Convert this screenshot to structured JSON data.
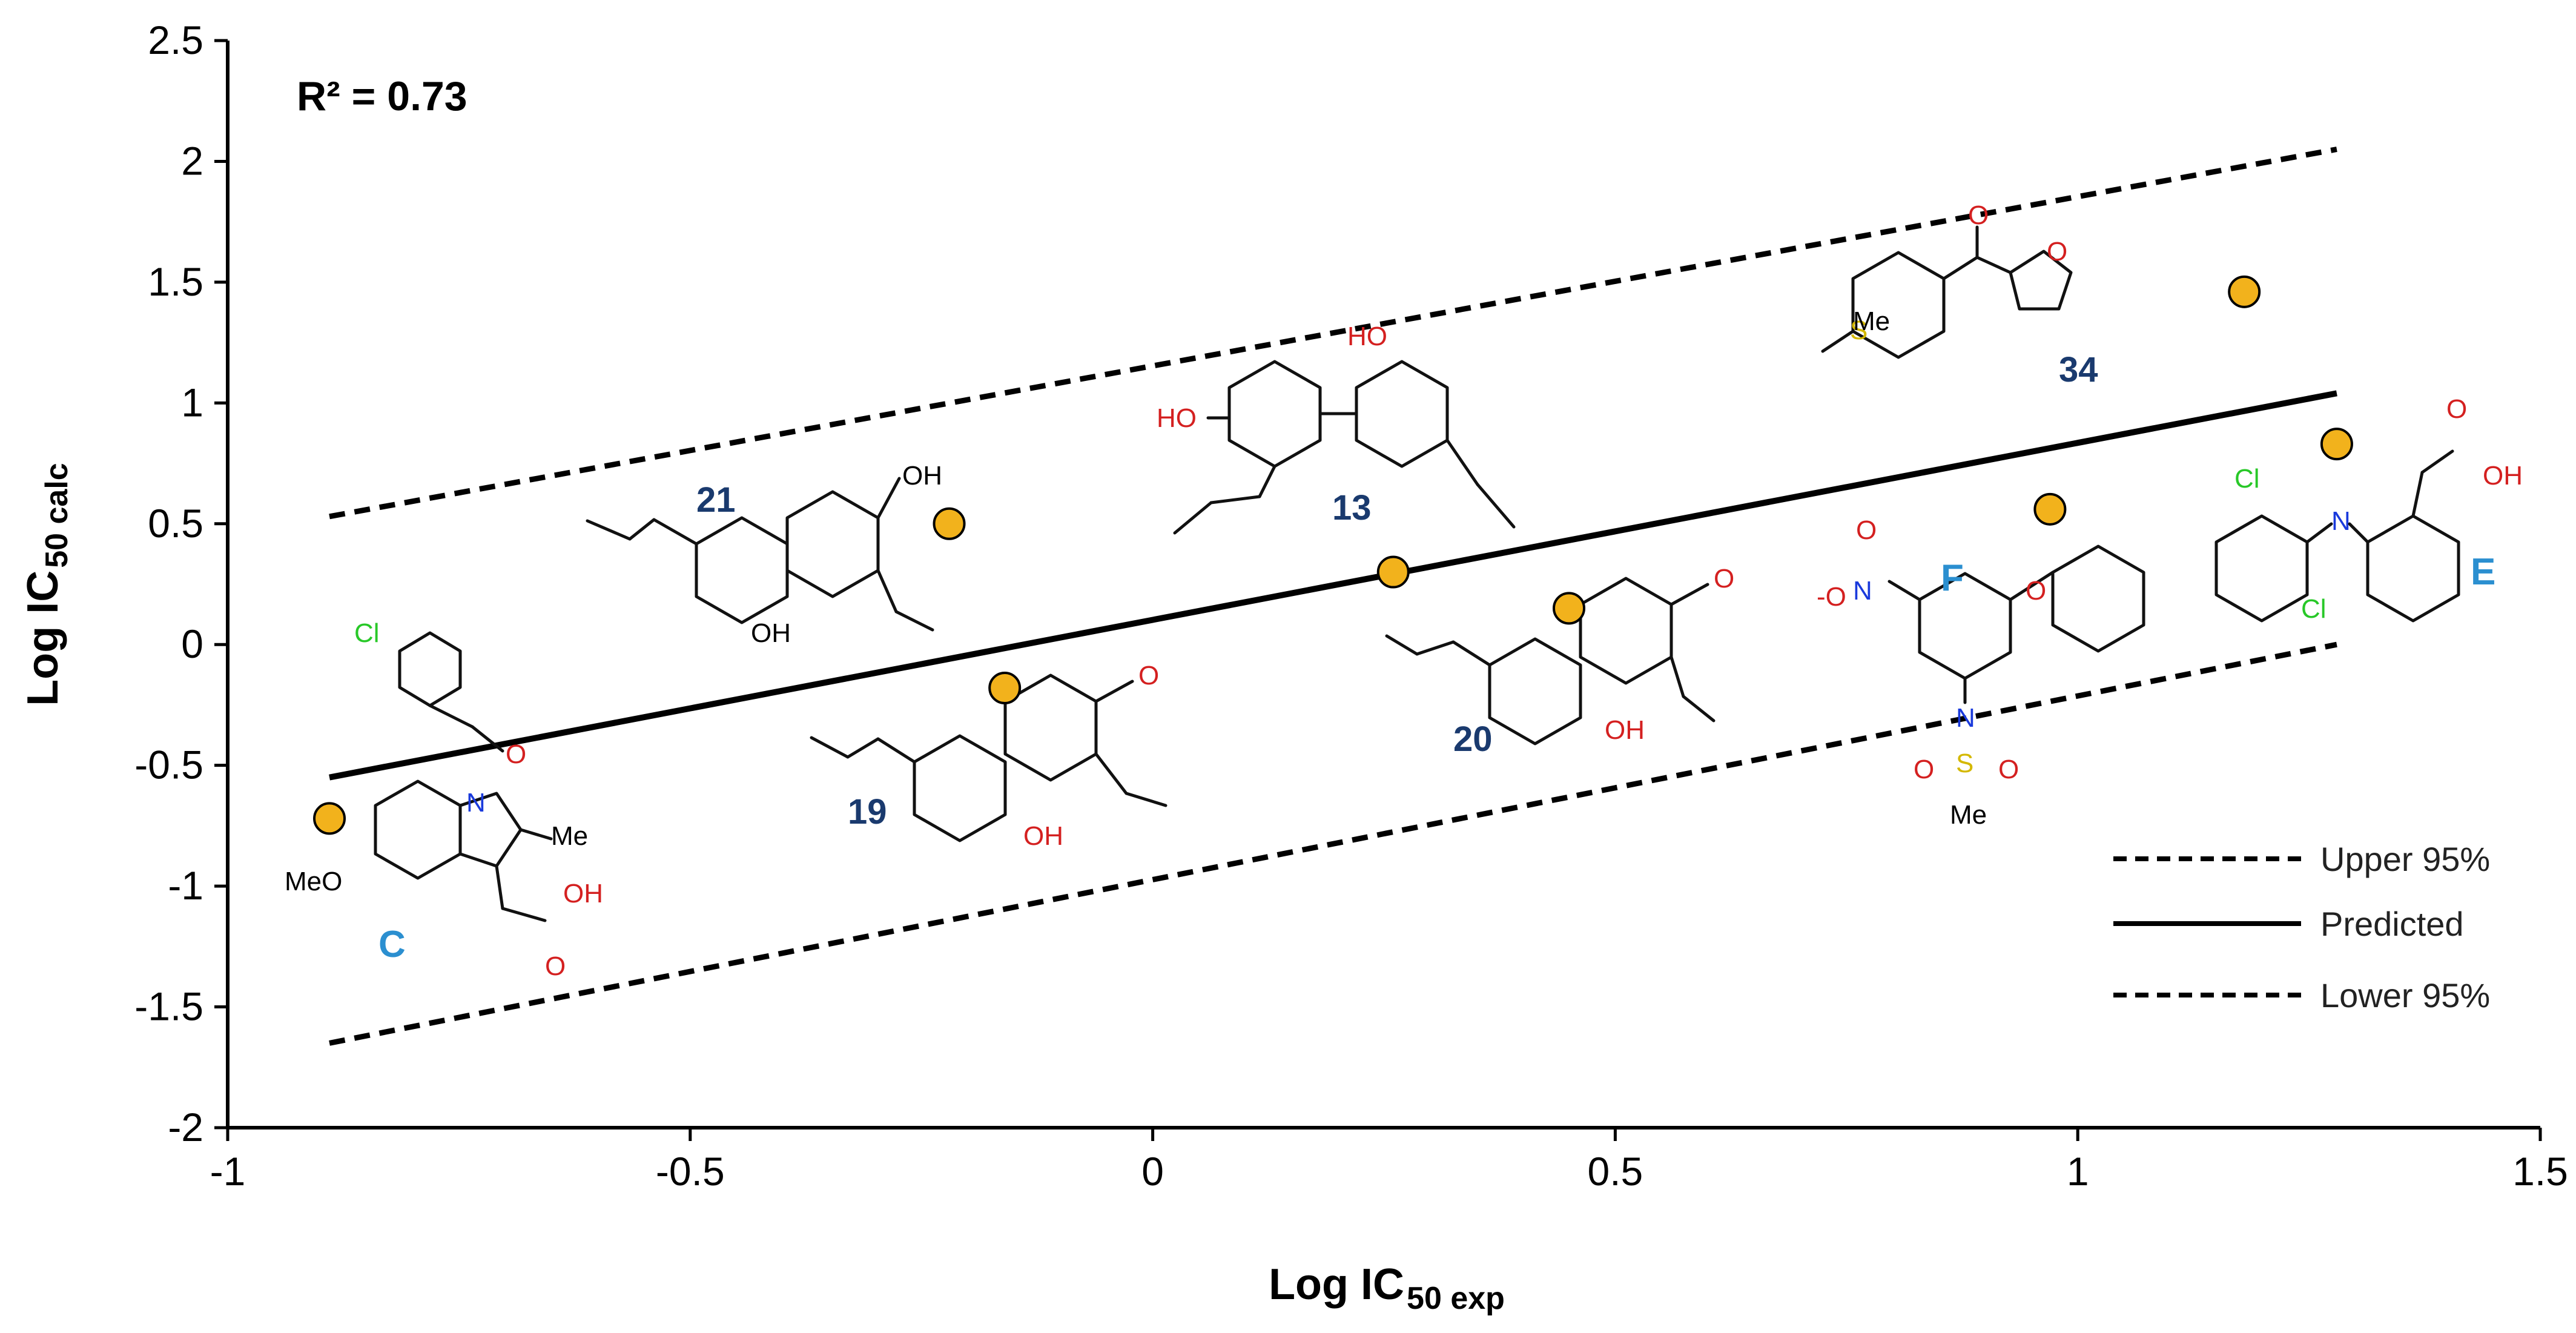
{
  "chart_data": {
    "type": "scatter",
    "xlabel": "Log IC",
    "xlabel_sub": "50 exp",
    "ylabel": "Log IC",
    "ylabel_sub": "50 calc",
    "xlim": [
      -1,
      1.5
    ],
    "ylim": [
      -2,
      2.5
    ],
    "xticks": [
      "-1",
      "-0.5",
      "0",
      "0.5",
      "1",
      "1.5"
    ],
    "yticks": [
      "-2",
      "-1.5",
      "-1",
      "-0.5",
      "0",
      "0.5",
      "1",
      "1.5",
      "2",
      "2.5"
    ],
    "annotation": "R² = 0.73",
    "grid": false,
    "legend_position": "bottom-right",
    "points": [
      {
        "label": "C",
        "x": -0.89,
        "y": -0.72
      },
      {
        "label": "21",
        "x": -0.22,
        "y": 0.5
      },
      {
        "label": "19",
        "x": -0.16,
        "y": -0.18
      },
      {
        "label": "13",
        "x": 0.26,
        "y": 0.3
      },
      {
        "label": "20",
        "x": 0.45,
        "y": 0.15
      },
      {
        "label": "F",
        "x": 0.97,
        "y": 0.56
      },
      {
        "label": "E",
        "x": 1.28,
        "y": 0.83
      },
      {
        "label": "34",
        "x": 1.18,
        "y": 1.46
      }
    ],
    "series": [
      {
        "name": "Upper 95%",
        "style": "dashed",
        "x": [
          -0.89,
          1.28
        ],
        "y": [
          0.53,
          2.05
        ]
      },
      {
        "name": "Predicted",
        "style": "solid",
        "x": [
          -0.89,
          1.28
        ],
        "y": [
          -0.55,
          1.04
        ]
      },
      {
        "name": "Lower 95%",
        "style": "dashed",
        "x": [
          -0.89,
          1.28
        ],
        "y": [
          -1.65,
          0.0
        ]
      }
    ],
    "point_color": "#f2b21c",
    "compound_labels": [
      "21",
      "13",
      "34",
      "19",
      "20",
      "C",
      "F",
      "E"
    ]
  }
}
